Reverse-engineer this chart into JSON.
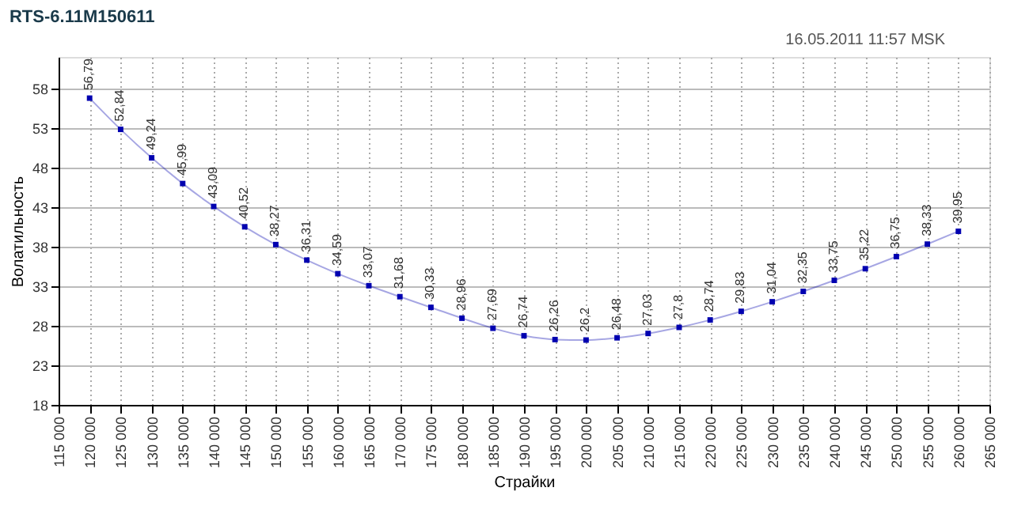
{
  "chart_data": {
    "type": "line",
    "title": "RTS-6.11M150611",
    "annotations": [
      "16.05.2011 11:57 MSK"
    ],
    "xlabel": "Страйки",
    "ylabel": "Волатильность",
    "x": [
      120000,
      125000,
      130000,
      135000,
      140000,
      145000,
      150000,
      155000,
      160000,
      165000,
      170000,
      175000,
      180000,
      185000,
      190000,
      195000,
      200000,
      205000,
      210000,
      215000,
      220000,
      225000,
      230000,
      235000,
      240000,
      245000,
      250000,
      255000,
      260000
    ],
    "series": [
      {
        "color": "#0000b0",
        "values": [
          56.79,
          52.84,
          49.24,
          45.99,
          43.09,
          40.52,
          38.27,
          36.31,
          34.59,
          33.07,
          31.68,
          30.33,
          28.96,
          27.69,
          26.74,
          26.26,
          26.2,
          26.48,
          27.03,
          27.8,
          28.74,
          29.83,
          31.04,
          32.35,
          33.75,
          35.22,
          36.75,
          38.33,
          39.95
        ],
        "value_labels": [
          "56,79",
          "52,84",
          "49,24",
          "45,99",
          "43,09",
          "40,52",
          "38,27",
          "36,31",
          "34,59",
          "33,07",
          "31,68",
          "30,33",
          "28,96",
          "27,69",
          "26,74",
          "26,26",
          "26,2",
          "26,48",
          "27,03",
          "27,8",
          "28,74",
          "29,83",
          "31,04",
          "32,35",
          "33,75",
          "35,22",
          "36,75",
          "38,33",
          "39,95"
        ]
      }
    ],
    "xlim": [
      115000,
      265000
    ],
    "xticks": [
      {
        "value": 115000,
        "label": "115 000"
      },
      {
        "value": 120000,
        "label": "120 000"
      },
      {
        "value": 125000,
        "label": "125 000"
      },
      {
        "value": 130000,
        "label": "130 000"
      },
      {
        "value": 135000,
        "label": "135 000"
      },
      {
        "value": 140000,
        "label": "140 000"
      },
      {
        "value": 145000,
        "label": "145 000"
      },
      {
        "value": 150000,
        "label": "150 000"
      },
      {
        "value": 155000,
        "label": "155 000"
      },
      {
        "value": 160000,
        "label": "160 000"
      },
      {
        "value": 165000,
        "label": "165 000"
      },
      {
        "value": 170000,
        "label": "170 000"
      },
      {
        "value": 175000,
        "label": "175 000"
      },
      {
        "value": 180000,
        "label": "180 000"
      },
      {
        "value": 185000,
        "label": "185 000"
      },
      {
        "value": 190000,
        "label": "190 000"
      },
      {
        "value": 195000,
        "label": "195 000"
      },
      {
        "value": 200000,
        "label": "200 000"
      },
      {
        "value": 205000,
        "label": "205 000"
      },
      {
        "value": 210000,
        "label": "210 000"
      },
      {
        "value": 215000,
        "label": "215 000"
      },
      {
        "value": 220000,
        "label": "220 000"
      },
      {
        "value": 225000,
        "label": "225 000"
      },
      {
        "value": 230000,
        "label": "230 000"
      },
      {
        "value": 235000,
        "label": "235 000"
      },
      {
        "value": 240000,
        "label": "240 000"
      },
      {
        "value": 245000,
        "label": "245 000"
      },
      {
        "value": 250000,
        "label": "250 000"
      },
      {
        "value": 255000,
        "label": "255 000"
      },
      {
        "value": 260000,
        "label": "260 000"
      },
      {
        "value": 265000,
        "label": "265 000"
      }
    ],
    "ylim": [
      18,
      62
    ],
    "yticks": [
      18,
      23,
      28,
      33,
      38,
      43,
      48,
      53,
      58
    ],
    "grid": true,
    "marker": "square",
    "line_style": "solid"
  }
}
